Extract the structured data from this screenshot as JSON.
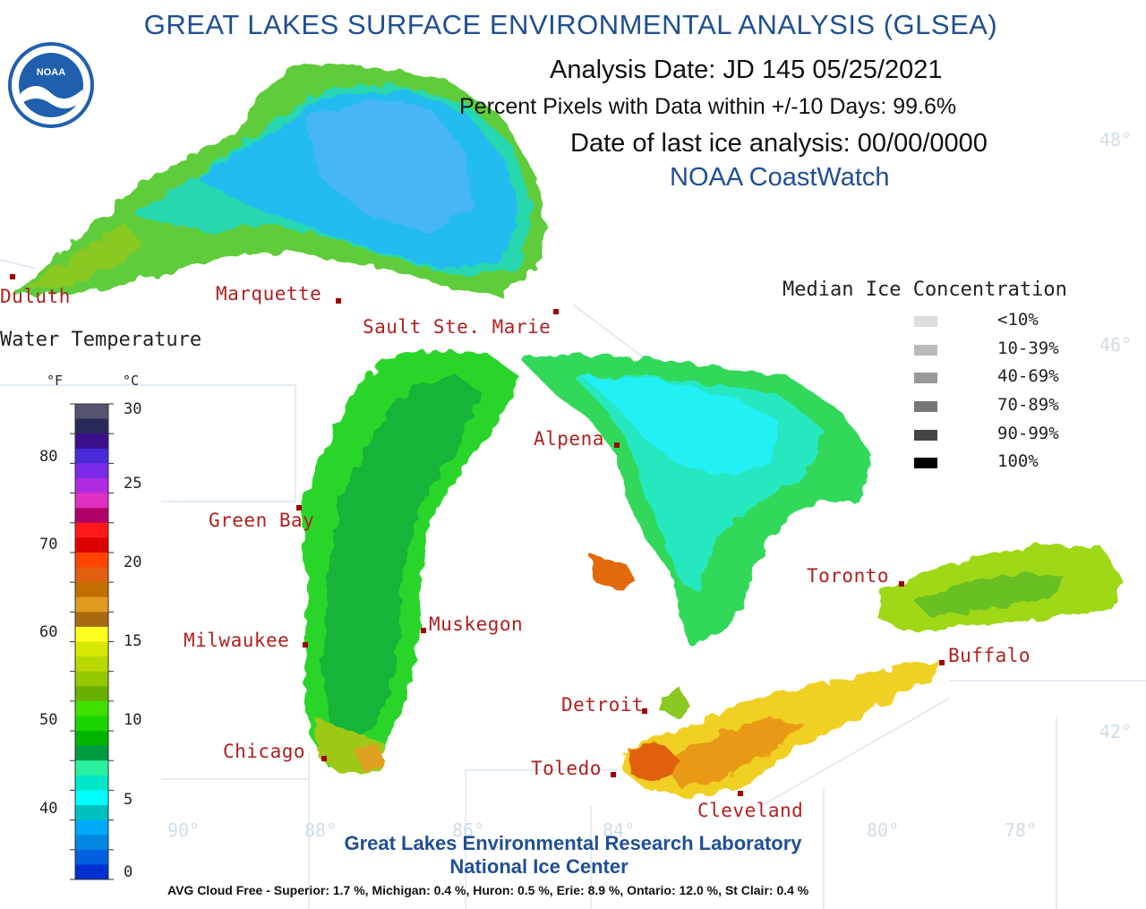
{
  "header": {
    "title": "GREAT LAKES SURFACE ENVIRONMENTAL ANALYSIS (GLSEA)",
    "analysis_date": "Analysis Date:  JD 145 05/25/2021",
    "percent_pixels": "Percent Pixels with Data within +/-10 Days:  99.6%",
    "ice_analysis_date": "Date of last ice analysis: 00/00/0000",
    "source": "NOAA CoastWatch",
    "logo_text": "NOAA"
  },
  "cities": [
    {
      "name": "Duluth"
    },
    {
      "name": "Marquette"
    },
    {
      "name": "Sault Ste. Marie"
    },
    {
      "name": "Alpena"
    },
    {
      "name": "Green Bay"
    },
    {
      "name": "Toronto"
    },
    {
      "name": "Muskegon"
    },
    {
      "name": "Milwaukee"
    },
    {
      "name": "Buffalo"
    },
    {
      "name": "Detroit"
    },
    {
      "name": "Chicago"
    },
    {
      "name": "Toledo"
    },
    {
      "name": "Cleveland"
    }
  ],
  "temperature_legend": {
    "title": "Water Temperature",
    "unit_f": "°F",
    "unit_c": "°C",
    "f_ticks": [
      "80",
      "70",
      "60",
      "50",
      "40"
    ],
    "c_ticks": [
      "30",
      "25",
      "20",
      "15",
      "10",
      "5",
      "0"
    ],
    "colors": [
      "#54546e",
      "#2a2a5a",
      "#3a0f8a",
      "#4a2ad8",
      "#7a2ae8",
      "#b02ae0",
      "#e030c0",
      "#b0006a",
      "#ff1a1a",
      "#dd0000",
      "#ff4400",
      "#e06010",
      "#c07000",
      "#e09a20",
      "#a86a10",
      "#ffff20",
      "#d6e800",
      "#b8d800",
      "#96c800",
      "#6ab000",
      "#40e000",
      "#1ad400",
      "#00b400",
      "#009a40",
      "#2af0a0",
      "#00e6c8",
      "#00ffff",
      "#00c0c0",
      "#00aaf8",
      "#0088e0",
      "#0060e0",
      "#0030d0"
    ]
  },
  "ice_legend": {
    "title": "Median Ice Concentration",
    "items": [
      {
        "label": "<10%",
        "color": "#dddddd"
      },
      {
        "label": "10-39%",
        "color": "#bbbbbb"
      },
      {
        "label": "40-69%",
        "color": "#999999"
      },
      {
        "label": "70-89%",
        "color": "#777777"
      },
      {
        "label": "90-99%",
        "color": "#444444"
      },
      {
        "label": "100%",
        "color": "#000000"
      }
    ]
  },
  "graticule": {
    "lat": [
      "48°",
      "46°",
      "42°"
    ],
    "lon": [
      "90°",
      "88°",
      "86°",
      "84°",
      "80°",
      "78°"
    ]
  },
  "credits": {
    "line1": "Great Lakes Environmental Research Laboratory",
    "line2": "National Ice Center",
    "cloud_free": "AVG Cloud Free - Superior:   1.7 %, Michigan:   0.4 %, Huron:   0.5 %, Erie:   8.9 %, Ontario: 12.0 %, St Clair:  0.4 %"
  }
}
